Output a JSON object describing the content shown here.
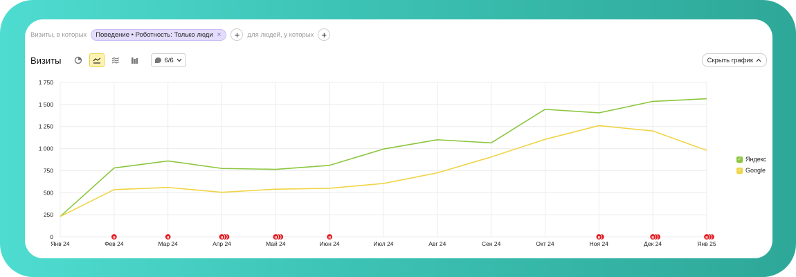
{
  "filters": {
    "prefix": "Визиты, в которых",
    "chip_label": "Поведение • Роботность: Только люди",
    "chip_close": "×",
    "add_label": "+",
    "people_label": "для людей, у которых",
    "add_label_2": "+"
  },
  "toolbar": {
    "title": "Визиты",
    "segments_label": "6/6",
    "hide_chart_label": "Скрыть график",
    "icons": [
      "pie-chart-icon",
      "line-chart-icon",
      "stacked-chart-icon",
      "bar-chart-icon"
    ]
  },
  "colors": {
    "yandex": "#8cc63f",
    "google": "#f0d447",
    "annotation": "#e31e24",
    "grid": "#ececec"
  },
  "chart_data": {
    "type": "line",
    "categories": [
      "Янв 24",
      "Фев 24",
      "Мар 24",
      "Апр 24",
      "Май 24",
      "Июн 24",
      "Июл 24",
      "Авг 24",
      "Сен 24",
      "Окт 24",
      "Ноя 24",
      "Дек 24",
      "Янв 25"
    ],
    "series": [
      {
        "name": "Яндекс",
        "values": [
          230,
          780,
          860,
          775,
          765,
          810,
          995,
          1100,
          1065,
          1445,
          1405,
          1535,
          1565
        ]
      },
      {
        "name": "Google",
        "values": [
          230,
          535,
          560,
          505,
          540,
          550,
          605,
          725,
          905,
          1105,
          1260,
          1200,
          980
        ]
      }
    ],
    "ylim": [
      0,
      1750
    ],
    "yticks": [
      0,
      250,
      500,
      750,
      1000,
      1250,
      1500,
      1750
    ],
    "ytick_labels": [
      "0",
      "250",
      "500",
      "750",
      "1 000",
      "1 250",
      "1 500",
      "1 750"
    ],
    "annotation_counts": [
      0,
      1,
      1,
      3,
      3,
      1,
      0,
      0,
      0,
      0,
      2,
      3,
      3
    ],
    "annotation_glyph": "н",
    "grid": true,
    "legend_placement": "right"
  }
}
